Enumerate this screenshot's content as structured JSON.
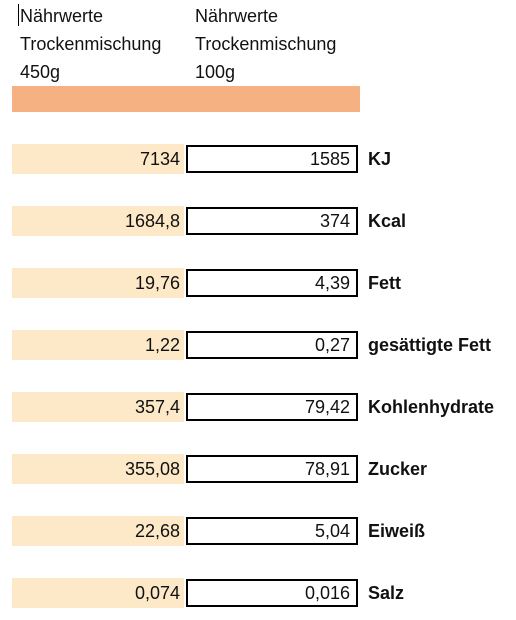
{
  "header": {
    "col1": "Nährwerte\nTrockenmischung\n450g",
    "col2": "Nährwerte\nTrockenmischung\n100g"
  },
  "rows": [
    {
      "v450": "7134",
      "v100": "1585",
      "label": "KJ"
    },
    {
      "v450": "1684,8",
      "v100": "374",
      "label": "Kcal"
    },
    {
      "v450": "19,76",
      "v100": "4,39",
      "label": "Fett"
    },
    {
      "v450": "1,22",
      "v100": "0,27",
      "label": "gesättigte Fett"
    },
    {
      "v450": "357,4",
      "v100": "79,42",
      "label": "Kohlenhydrate"
    },
    {
      "v450": "355,08",
      "v100": "78,91",
      "label": "Zucker"
    },
    {
      "v450": "22,68",
      "v100": "5,04",
      "label": "Eiweiß"
    },
    {
      "v450": "0,074",
      "v100": "0,016",
      "label": "Salz"
    }
  ],
  "colors": {
    "header_band": "#f6b183",
    "cell_fill": "#fde9c8"
  }
}
